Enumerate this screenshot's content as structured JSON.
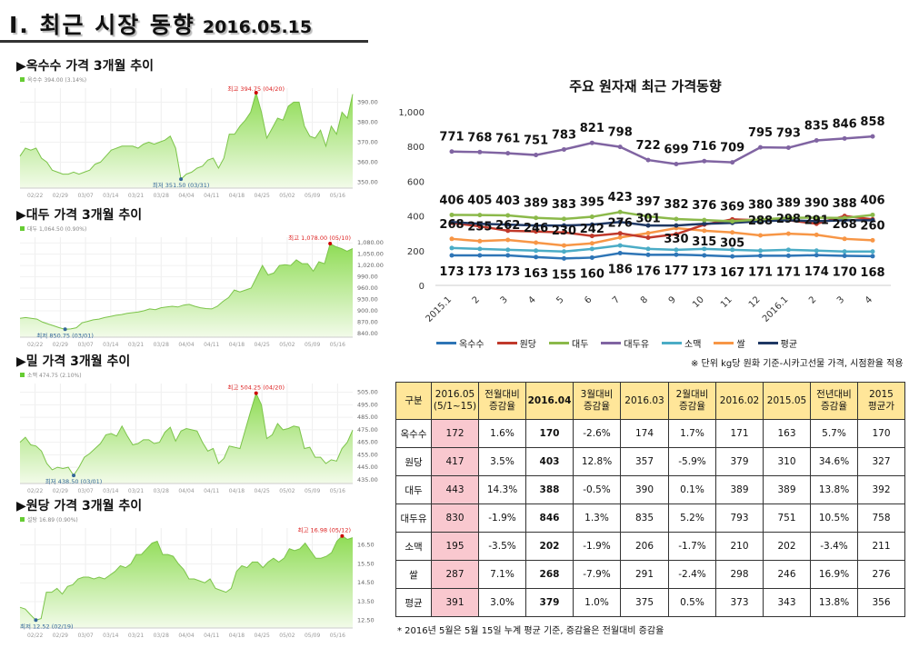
{
  "header": {
    "title": "Ⅰ. 최근 시장 동향",
    "date": "2016.05.15"
  },
  "small_charts": [
    {
      "title": "▶옥수수 가격 3개월 추이",
      "legend": "옥수수 394.00 (3.14%)",
      "max_label": "최고 394.75 (04/20)",
      "min_label": "최저 351.50 (03/31)",
      "yticks": [
        "390.00",
        "380.00",
        "370.00",
        "360.00",
        "350.00"
      ],
      "ytick_values": [
        390,
        380,
        370,
        360,
        350
      ],
      "ylim": [
        347,
        397
      ],
      "xticks": [
        "02/22",
        "02/29",
        "03/07",
        "03/14",
        "03/21",
        "03/28",
        "04/04",
        "04/11",
        "04/18",
        "04/25",
        "05/02",
        "05/09",
        "05/16"
      ],
      "values": [
        363,
        367,
        366,
        367,
        362,
        360,
        356,
        355,
        354,
        354,
        355,
        354,
        355,
        356,
        359,
        360,
        363,
        366,
        367,
        368,
        368,
        368,
        367,
        369,
        370,
        369,
        370,
        371,
        373,
        367,
        351.5,
        354,
        355,
        357,
        358,
        361,
        362,
        357,
        362,
        374,
        374,
        378,
        381,
        385,
        394.75,
        385,
        372,
        377,
        382,
        381,
        388,
        390,
        390,
        378,
        373,
        372,
        376,
        368,
        378,
        374,
        385,
        382,
        394
      ],
      "max_index": 44,
      "min_index": 30
    },
    {
      "title": "▶대두 가격 3개월 추이",
      "legend": "대두 1,064.50 (0.90%)",
      "max_label": "최고 1,078.00 (05/10)",
      "min_label": "최저 850.75 (03/01)",
      "yticks": [
        "1,080.00",
        "1,050.00",
        "1,020.00",
        "990.00",
        "960.00",
        "930.00",
        "900.00",
        "870.00",
        "840.00"
      ],
      "ytick_values": [
        1080,
        1050,
        1020,
        990,
        960,
        930,
        900,
        870,
        840
      ],
      "ylim": [
        830,
        1095
      ],
      "xticks": [
        "02/22",
        "02/29",
        "03/07",
        "03/14",
        "03/21",
        "03/28",
        "04/04",
        "04/11",
        "04/18",
        "04/25",
        "05/02",
        "05/09",
        "05/16"
      ],
      "values": [
        880,
        882,
        880,
        878,
        870,
        865,
        860,
        855,
        851,
        852,
        855,
        868,
        872,
        876,
        878,
        882,
        885,
        888,
        890,
        893,
        895,
        897,
        900,
        905,
        903,
        908,
        910,
        912,
        910,
        915,
        917,
        912,
        908,
        906,
        905,
        912,
        925,
        935,
        955,
        950,
        955,
        960,
        990,
        1020,
        995,
        1000,
        1020,
        1022,
        1020,
        1035,
        1025,
        1025,
        1005,
        1030,
        1025,
        1078,
        1070,
        1065,
        1058,
        1065
      ],
      "max_index": 55,
      "min_index": 8
    },
    {
      "title": "▶밀 가격 3개월 추이",
      "legend": "소맥 474.75 (2.10%)",
      "max_label": "최고 504.25 (04/20)",
      "min_label": "최저 438.50 (03/01)",
      "yticks": [
        "505.00",
        "495.00",
        "485.00",
        "475.00",
        "465.00",
        "455.00",
        "445.00",
        "435.00"
      ],
      "ytick_values": [
        505,
        495,
        485,
        475,
        465,
        455,
        445,
        435
      ],
      "ylim": [
        432,
        512
      ],
      "xticks": [
        "02/22",
        "02/29",
        "03/07",
        "03/14",
        "03/21",
        "03/28",
        "04/04",
        "04/11",
        "04/18",
        "04/25",
        "05/02",
        "05/09",
        "05/16"
      ],
      "values": [
        465,
        469,
        463,
        462,
        458,
        448,
        443,
        445,
        444,
        445,
        438.5,
        445,
        453,
        456,
        460,
        464,
        471,
        472,
        470,
        478,
        470,
        463,
        464,
        467,
        467,
        464,
        465,
        473,
        477,
        466,
        474,
        476,
        475,
        474,
        465,
        458,
        460,
        448,
        452,
        462,
        461,
        460,
        475,
        490,
        504.25,
        495,
        468,
        471,
        480,
        475,
        476,
        478,
        477,
        460,
        461,
        453,
        453,
        448,
        451,
        450,
        460,
        465,
        474.75
      ],
      "max_index": 44,
      "min_index": 10
    },
    {
      "title": "▶원당 가격 3개월 추이",
      "legend": "설탕 16.89 (0.90%)",
      "max_label": "최고 16.98 (05/12)",
      "min_label": "최저 12.52 (02/19)",
      "yticks": [
        "16.50",
        "15.50",
        "14.50",
        "13.50",
        "12.50"
      ],
      "ytick_values": [
        16.5,
        15.5,
        14.5,
        13.5,
        12.5
      ],
      "ylim": [
        12.1,
        17.4
      ],
      "xticks": [
        "02/22",
        "02/29",
        "03/07",
        "03/14",
        "03/21",
        "03/28",
        "04/04",
        "04/11",
        "04/18",
        "04/25",
        "05/02",
        "05/09",
        "05/16"
      ],
      "values": [
        13.2,
        13.1,
        12.8,
        12.52,
        12.6,
        14.0,
        14.0,
        14.2,
        13.9,
        14.3,
        14.4,
        14.7,
        14.8,
        14.8,
        14.7,
        14.8,
        14.7,
        14.9,
        15.1,
        15.4,
        15.3,
        15.5,
        16.0,
        16.0,
        16.3,
        16.6,
        16.7,
        16.0,
        16.0,
        15.9,
        15.5,
        15.2,
        14.7,
        14.7,
        14.6,
        14.5,
        14.7,
        14.2,
        14.1,
        14.0,
        14.2,
        15.1,
        15.4,
        15.3,
        15.6,
        15.6,
        15.3,
        15.6,
        15.8,
        15.6,
        15.8,
        16.3,
        16.2,
        16.3,
        16.6,
        16.2,
        15.8,
        15.8,
        15.9,
        16.1,
        16.7,
        16.98,
        16.8,
        16.89
      ],
      "max_index": 61,
      "min_index": 3
    }
  ],
  "chart_data": {
    "type": "line",
    "title": "주요 원자재 최근 가격동향",
    "categories": [
      "2015.1",
      "2",
      "3",
      "4",
      "5",
      "6",
      "7",
      "8",
      "9",
      "10",
      "11",
      "12",
      "2016.1",
      "2",
      "3",
      "4"
    ],
    "ylim": [
      0,
      1000
    ],
    "yticks": [
      "0",
      "200",
      "400",
      "600",
      "800",
      "1,000"
    ],
    "ytick_values": [
      0,
      200,
      400,
      600,
      800,
      1000
    ],
    "legend_position": "bottom",
    "note": "※ 단위 kg당 원화 기준-시카고선물 가격, 시점환율 적용",
    "series": [
      {
        "name": "옥수수",
        "color": "#2e75b6",
        "labeled": true,
        "label_pos": "below",
        "values": [
          173,
          173,
          173,
          163,
          155,
          160,
          186,
          176,
          177,
          173,
          167,
          171,
          171,
          174,
          170,
          168
        ]
      },
      {
        "name": "원당",
        "color": "#c0392b",
        "labeled": false,
        "values": [
          360,
          340,
          315,
          310,
          305,
          285,
          300,
          275,
          295,
          350,
          380,
          375,
          375,
          355,
          400,
          380
        ]
      },
      {
        "name": "대두",
        "color": "#8bb94a",
        "labeled": true,
        "label_pos": "above",
        "values": [
          406,
          405,
          403,
          389,
          383,
          395,
          423,
          397,
          382,
          376,
          369,
          380,
          389,
          390,
          388,
          406
        ]
      },
      {
        "name": "대두유",
        "color": "#8064a2",
        "labeled": true,
        "label_pos": "above",
        "values": [
          771,
          768,
          761,
          751,
          783,
          821,
          798,
          722,
          699,
          716,
          709,
          795,
          793,
          835,
          846,
          858
        ]
      },
      {
        "name": "소맥",
        "color": "#4bacc6",
        "labeled": false,
        "values": [
          215,
          210,
          205,
          200,
          195,
          210,
          230,
          210,
          205,
          210,
          205,
          200,
          205,
          200,
          195,
          195
        ]
      },
      {
        "name": "쌀",
        "color": "#f79646",
        "labeled": true,
        "label_pos": "above",
        "values": [
          268,
          255,
          262,
          246,
          230,
          242,
          276,
          301,
          330,
          315,
          305,
          288,
          298,
          291,
          268,
          260
        ]
      },
      {
        "name": "평균",
        "color": "#1f3864",
        "labeled": false,
        "values": [
          365,
          355,
          350,
          345,
          345,
          350,
          365,
          345,
          345,
          355,
          360,
          370,
          375,
          370,
          375,
          375
        ]
      }
    ]
  },
  "table": {
    "headers": [
      "구분",
      "2016.05\n(5/1~15)",
      "전월대비\n증감율",
      "2016.04",
      "3월대비\n증감율",
      "2016.03",
      "2월대비\n증감율",
      "2016.02",
      "2015.05",
      "전년대비\n증감율",
      "2015\n평균가"
    ],
    "rows": [
      [
        "옥수수",
        "172",
        "1.6%",
        "170",
        "-2.6%",
        "174",
        "1.7%",
        "171",
        "163",
        "5.7%",
        "170"
      ],
      [
        "원당",
        "417",
        "3.5%",
        "403",
        "12.8%",
        "357",
        "-5.9%",
        "379",
        "310",
        "34.6%",
        "327"
      ],
      [
        "대두",
        "443",
        "14.3%",
        "388",
        "-0.5%",
        "390",
        "0.1%",
        "389",
        "389",
        "13.8%",
        "392"
      ],
      [
        "대두유",
        "830",
        "-1.9%",
        "846",
        "1.3%",
        "835",
        "5.2%",
        "793",
        "751",
        "10.5%",
        "758"
      ],
      [
        "소맥",
        "195",
        "-3.5%",
        "202",
        "-1.9%",
        "206",
        "-1.7%",
        "210",
        "202",
        "-3.4%",
        "211"
      ],
      [
        "쌀",
        "287",
        "7.1%",
        "268",
        "-7.9%",
        "291",
        "-2.4%",
        "298",
        "246",
        "16.9%",
        "276"
      ],
      [
        "평균",
        "391",
        "3.0%",
        "379",
        "1.0%",
        "375",
        "0.5%",
        "373",
        "343",
        "13.8%",
        "356"
      ]
    ],
    "footnote": "* 2016년 5월은 5월 15일 누계 평균 기준, 증감율은 전월대비 증감율"
  }
}
